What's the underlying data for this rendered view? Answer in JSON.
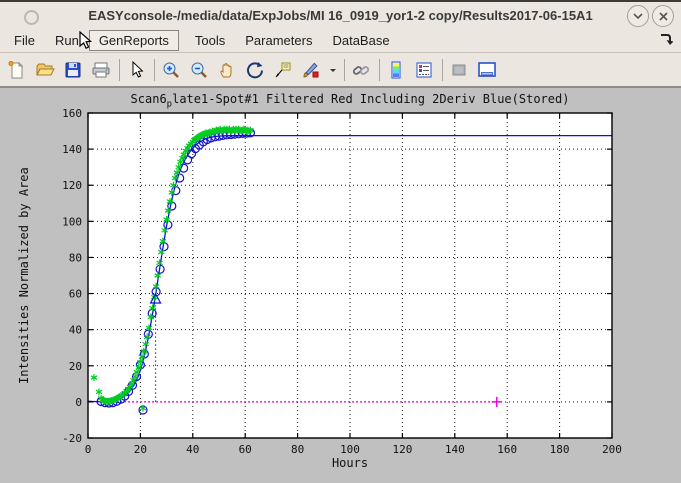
{
  "window": {
    "title": "EASYconsole-/media/data/ExpJobs/MI 16_0919_yor1-2 copy/Results2017-06-15A1"
  },
  "menubar": {
    "items": [
      {
        "label": "File"
      },
      {
        "label": "Run"
      },
      {
        "label": "GenReports"
      },
      {
        "label": "Tools"
      },
      {
        "label": "Parameters"
      },
      {
        "label": "DataBase"
      }
    ]
  },
  "toolbar": {
    "icon_names": [
      "new-figure",
      "open-file",
      "save-figure",
      "print-figure",
      "pointer",
      "zoom-in",
      "zoom-out",
      "pan",
      "rotate-3d",
      "data-cursor",
      "brush",
      "brush-dropdown",
      "link-plot",
      "insert-colorbar",
      "insert-legend",
      "hide-plot-tools",
      "show-plot-tools"
    ]
  },
  "figure": {
    "title_pre": "Scan6",
    "title_sub": "p",
    "title_post": "late1-Spot#1 Filtered Red Including 2Deriv Blue(Stored)"
  },
  "chart_data": {
    "type": "line",
    "title": "Scan6_plate1-Spot#1 Filtered Red Including 2Deriv Blue(Stored)",
    "xlabel": "Hours",
    "ylabel": "Intensities Normalized by Area",
    "xlim": [
      0,
      200
    ],
    "ylim": [
      -20,
      160
    ],
    "xticks": [
      0,
      20,
      40,
      60,
      80,
      100,
      120,
      140,
      160,
      180,
      200
    ],
    "yticks": [
      -20,
      0,
      20,
      40,
      60,
      80,
      100,
      120,
      140,
      160
    ],
    "grid": true,
    "legend": "none",
    "plateau_level": 147.5,
    "colors": {
      "raw": "#00cc22",
      "filtered_fit": "#1212cc",
      "baseline": "#ee00ee"
    },
    "series": [
      {
        "name": "baseline-zero",
        "type": "line",
        "style": "dotted",
        "color": "#ee00ee",
        "width": 1.2,
        "points": [
          [
            0,
            0
          ],
          [
            156,
            0
          ]
        ]
      },
      {
        "name": "inflection-drop-line",
        "type": "line",
        "style": "dotted",
        "color": "#1212cc",
        "width": 1,
        "points": [
          [
            25.8,
            0
          ],
          [
            25.8,
            53.5
          ]
        ]
      },
      {
        "name": "fitted-curve",
        "type": "line",
        "color": "#1212cc",
        "width": 1.3,
        "points": [
          [
            0,
            0.3
          ],
          [
            2,
            0.2
          ],
          [
            4,
            0.1
          ],
          [
            6,
            0
          ],
          [
            8,
            0.1
          ],
          [
            10,
            0.5
          ],
          [
            12,
            1.5
          ],
          [
            14,
            3.2
          ],
          [
            16,
            6
          ],
          [
            18,
            10.5
          ],
          [
            19,
            13.5
          ],
          [
            20,
            17.5
          ],
          [
            21,
            22.5
          ],
          [
            22,
            28.5
          ],
          [
            23,
            35.5
          ],
          [
            24,
            43.5
          ],
          [
            25,
            52
          ],
          [
            26,
            61
          ],
          [
            27,
            70.5
          ],
          [
            28,
            80
          ],
          [
            29,
            89
          ],
          [
            30,
            97.5
          ],
          [
            31,
            105
          ],
          [
            32,
            112
          ],
          [
            33,
            118
          ],
          [
            34,
            123
          ],
          [
            35,
            127.5
          ],
          [
            36,
            131
          ],
          [
            37,
            134
          ],
          [
            38,
            136.5
          ],
          [
            39,
            138.8
          ],
          [
            40,
            140.6
          ],
          [
            41,
            142
          ],
          [
            42,
            143.2
          ],
          [
            43,
            144.2
          ],
          [
            44,
            145
          ],
          [
            45,
            145.7
          ],
          [
            46,
            146.2
          ],
          [
            47,
            146.6
          ],
          [
            48,
            146.9
          ],
          [
            50,
            147.2
          ],
          [
            52,
            147.4
          ],
          [
            55,
            147.5
          ],
          [
            60,
            147.5
          ],
          [
            200,
            147.5
          ]
        ]
      },
      {
        "name": "filtered-points",
        "type": "scatter",
        "marker": "circle",
        "color": "#1212cc",
        "size": 4,
        "points": [
          [
            5,
            0.2
          ],
          [
            6.5,
            -0.4
          ],
          [
            8,
            -0.6
          ],
          [
            9.5,
            -0.4
          ],
          [
            11,
            0.3
          ],
          [
            12.5,
            1.5
          ],
          [
            14,
            3.2
          ],
          [
            15.5,
            5.8
          ],
          [
            17,
            9.2
          ],
          [
            18.5,
            14
          ],
          [
            20,
            20.5
          ],
          [
            21,
            -4.5
          ],
          [
            21.5,
            26.5
          ],
          [
            23,
            37.5
          ],
          [
            24.5,
            49
          ],
          [
            26,
            61
          ],
          [
            27.5,
            73.5
          ],
          [
            29,
            86
          ],
          [
            30.5,
            98
          ],
          [
            32,
            108.5
          ],
          [
            33.5,
            117
          ],
          [
            35,
            124
          ],
          [
            36.5,
            129.5
          ],
          [
            38,
            134
          ],
          [
            39.5,
            137.5
          ],
          [
            41,
            140.3
          ],
          [
            42.5,
            142.3
          ],
          [
            44,
            144
          ],
          [
            45.5,
            145.3
          ],
          [
            47,
            146.2
          ],
          [
            48.5,
            146.8
          ],
          [
            50,
            147.2
          ],
          [
            51.5,
            147.6
          ],
          [
            53,
            147.9
          ],
          [
            54.5,
            148.1
          ],
          [
            56,
            148.3
          ],
          [
            57.5,
            148.5
          ],
          [
            59,
            148.7
          ],
          [
            60.5,
            148.8
          ],
          [
            62,
            149
          ]
        ]
      },
      {
        "name": "raw-points",
        "type": "scatter",
        "marker": "asterisk",
        "color": "#00cc22",
        "size": 3.5,
        "points": [
          [
            2.3,
            13.5
          ],
          [
            4.2,
            5.5
          ],
          [
            5,
            2
          ],
          [
            5.5,
            1.2
          ],
          [
            6,
            0.8
          ],
          [
            6.5,
            0.5
          ],
          [
            7,
            0.3
          ],
          [
            7.5,
            0.3
          ],
          [
            8,
            0.4
          ],
          [
            8.5,
            0.5
          ],
          [
            9,
            0.7
          ],
          [
            9.5,
            0.9
          ],
          [
            10,
            1.2
          ],
          [
            10.5,
            1.5
          ],
          [
            11,
            1.9
          ],
          [
            11.5,
            2.3
          ],
          [
            12,
            2.8
          ],
          [
            12.7,
            3.4
          ],
          [
            13.4,
            4.2
          ],
          [
            14,
            5
          ],
          [
            14.7,
            6
          ],
          [
            15.4,
            7.2
          ],
          [
            16,
            8.5
          ],
          [
            16.7,
            10
          ],
          [
            17.4,
            12
          ],
          [
            18,
            14
          ],
          [
            18.7,
            16.5
          ],
          [
            19.4,
            19
          ],
          [
            20,
            22
          ],
          [
            20.6,
            25
          ],
          [
            21,
            -3.5
          ],
          [
            21.3,
            28
          ],
          [
            22,
            32
          ],
          [
            22.6,
            36
          ],
          [
            23.3,
            41
          ],
          [
            24,
            47
          ],
          [
            24.6,
            52
          ],
          [
            25.3,
            58
          ],
          [
            26,
            64
          ],
          [
            26.6,
            70
          ],
          [
            27.3,
            77
          ],
          [
            28,
            83
          ],
          [
            28.6,
            89
          ],
          [
            29.3,
            95
          ],
          [
            30,
            101
          ],
          [
            30.6,
            106
          ],
          [
            31.3,
            111
          ],
          [
            32,
            116
          ],
          [
            32.6,
            120
          ],
          [
            33.3,
            124
          ],
          [
            34,
            127
          ],
          [
            34.6,
            130
          ],
          [
            35.3,
            133
          ],
          [
            36,
            135
          ],
          [
            36.6,
            137
          ],
          [
            37.3,
            139
          ],
          [
            38,
            140.5
          ],
          [
            38.6,
            142
          ],
          [
            39.3,
            143
          ],
          [
            40,
            144
          ],
          [
            40.5,
            145
          ],
          [
            41,
            145.5
          ],
          [
            41.5,
            146
          ],
          [
            42,
            146.5
          ],
          [
            42.5,
            147
          ],
          [
            43,
            147.5
          ],
          [
            43.5,
            148
          ],
          [
            44,
            148
          ],
          [
            44.5,
            148.5
          ],
          [
            45,
            149
          ],
          [
            45.5,
            148.5
          ],
          [
            46,
            149
          ],
          [
            46.5,
            149.5
          ],
          [
            47,
            149
          ],
          [
            47.5,
            150
          ],
          [
            48,
            149.5
          ],
          [
            48.5,
            150
          ],
          [
            49,
            150.5
          ],
          [
            49.5,
            150
          ],
          [
            50,
            150.5
          ],
          [
            50.5,
            151
          ],
          [
            51,
            150
          ],
          [
            51.5,
            150.5
          ],
          [
            52,
            151
          ],
          [
            52.5,
            150.5
          ],
          [
            53,
            151
          ],
          [
            53.5,
            150.5
          ],
          [
            54,
            151
          ],
          [
            54.5,
            150
          ],
          [
            55,
            150.5
          ],
          [
            55.5,
            151
          ],
          [
            56,
            150.5
          ],
          [
            56.5,
            151
          ],
          [
            57,
            150.5
          ],
          [
            57.5,
            151
          ],
          [
            58,
            150.5
          ],
          [
            58.5,
            150
          ],
          [
            59,
            150.5
          ],
          [
            59.5,
            151
          ],
          [
            60,
            150.5
          ],
          [
            60.5,
            150
          ],
          [
            61,
            150.5
          ],
          [
            61.5,
            150
          ],
          [
            62,
            150.5
          ]
        ]
      },
      {
        "name": "inflection-marker",
        "type": "scatter",
        "marker": "triangle-open",
        "color": "#1212cc",
        "size": 5,
        "points": [
          [
            25.8,
            57
          ]
        ]
      },
      {
        "name": "baseline-end-marker",
        "type": "scatter",
        "marker": "plus",
        "color": "#ee00ee",
        "size": 5,
        "points": [
          [
            156,
            0
          ]
        ]
      }
    ]
  }
}
